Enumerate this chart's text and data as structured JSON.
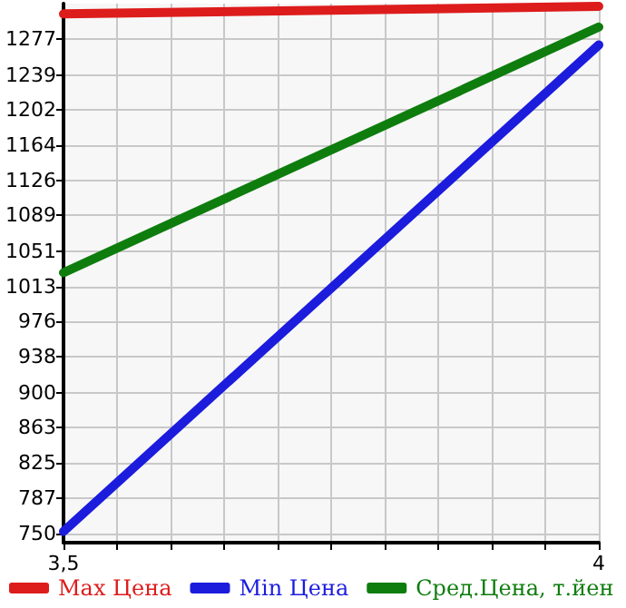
{
  "chart_data": {
    "type": "line",
    "x": [
      3.5,
      4
    ],
    "series": [
      {
        "name": "Max Цена",
        "color": "#dd1c1c",
        "values": [
          1304,
          1312
        ]
      },
      {
        "name": "Min Цена",
        "color": "#1c1cdd",
        "values": [
          752,
          1271
        ]
      },
      {
        "name": "Сред.Цена, т.йен",
        "color": "#0e7d0e",
        "values": [
          1028,
          1290
        ]
      }
    ],
    "xlim": [
      3.5,
      4
    ],
    "xticks": [
      {
        "value": 3.5,
        "label": "3,5"
      },
      {
        "value": 3.55,
        "label": null
      },
      {
        "value": 3.6,
        "label": null
      },
      {
        "value": 3.65,
        "label": null
      },
      {
        "value": 3.7,
        "label": null
      },
      {
        "value": 3.75,
        "label": null
      },
      {
        "value": 3.8,
        "label": null
      },
      {
        "value": 3.85,
        "label": null
      },
      {
        "value": 3.9,
        "label": null
      },
      {
        "value": 3.95,
        "label": null
      },
      {
        "value": 4,
        "label": "4"
      }
    ],
    "ylim": [
      740,
      1315
    ],
    "yticks": [
      750,
      787,
      825,
      863,
      900,
      938,
      976,
      1013,
      1051,
      1089,
      1126,
      1164,
      1202,
      1239,
      1277
    ],
    "grid": true,
    "legend": "bottom",
    "marker": "none",
    "line_style": "solid"
  }
}
